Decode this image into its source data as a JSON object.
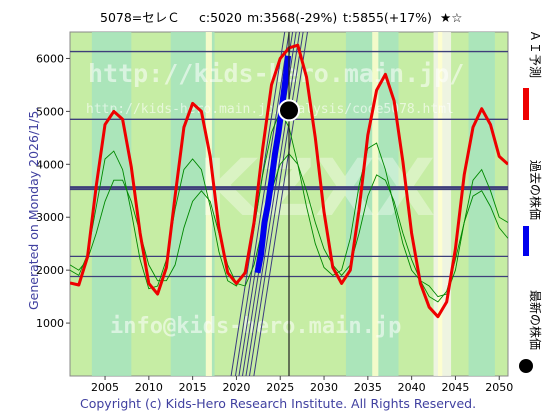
{
  "header": {
    "code_name": "5078=セレＣ",
    "current": "c:5020",
    "min": "m:3568(-29%)",
    "target": "t:5855(+17%)",
    "stars": "★☆"
  },
  "left_note": "Generated on Monday 2026/1/5.",
  "copyright": "Copyright (c) Kids-Hero Research Institute. All Rights Reserved.",
  "watermarks": {
    "url_large": "http://kids-hero.main.jp/",
    "url_small": "http://kids-hero.main.jp/analysis/code5078.html",
    "brand": "KZXX",
    "email": "info@kids-hero.main.jp"
  },
  "legend": [
    {
      "label": "ＡＩ予測",
      "color": "#ee0000"
    },
    {
      "label": "過去の株価",
      "color": "#0000ee"
    },
    {
      "label": "最新の株価",
      "color": "#000000"
    }
  ],
  "colors": {
    "plot_bg": "#c6eda4",
    "band_light": "#a6e3be",
    "band_pale": "#ffffcc",
    "band_white": "#f4f4ec",
    "grid_h": "#3e3e7a",
    "ai": "#ee0000",
    "past": "#0000ee",
    "thin": "#008800",
    "axis_text": "#000000"
  },
  "chart_data": {
    "type": "line",
    "xlim": [
      2001,
      2051
    ],
    "ylim": [
      0,
      6500
    ],
    "x_ticks": [
      2005,
      2010,
      2015,
      2020,
      2025,
      2030,
      2035,
      2040,
      2045,
      2050
    ],
    "y_ticks": [
      1000,
      2000,
      3000,
      4000,
      5000,
      6000
    ],
    "grid": "horizontal lines",
    "reference_lines": [
      6130,
      4850,
      3568,
      3530,
      2260,
      1880
    ],
    "latest_point": {
      "x": 2026.0,
      "y": 5020
    },
    "current_line_x": 2026.0,
    "series": [
      {
        "name": "ＡＩ予測",
        "x": [
          2001.0,
          2002.0,
          2003.0,
          2004.0,
          2005.0,
          2006.0,
          2007.0,
          2008.0,
          2009.0,
          2010.0,
          2011.0,
          2012.0,
          2013.0,
          2014.0,
          2015.0,
          2016.0,
          2017.0,
          2018.0,
          2019.0,
          2020.0,
          2021.0,
          2022.0,
          2023.0,
          2024.0,
          2025.0,
          2026.0,
          2027.0,
          2028.0,
          2029.0,
          2030.0,
          2031.0,
          2032.0,
          2033.0,
          2034.0,
          2035.0,
          2036.0,
          2037.0,
          2038.0,
          2039.0,
          2040.0,
          2041.0,
          2042.0,
          2043.0,
          2044.0,
          2045.0,
          2046.0,
          2047.0,
          2048.0,
          2049.0,
          2050.0,
          2051.0
        ],
        "y": [
          1760,
          1720,
          2250,
          3600,
          4750,
          5000,
          4850,
          3950,
          2700,
          1750,
          1550,
          2050,
          3400,
          4700,
          5150,
          5000,
          4150,
          2800,
          1950,
          1750,
          1950,
          2900,
          4300,
          5500,
          6000,
          6200,
          6250,
          5650,
          4500,
          3100,
          2050,
          1750,
          2000,
          3150,
          4550,
          5400,
          5700,
          5200,
          4050,
          2700,
          1750,
          1300,
          1120,
          1400,
          2400,
          3800,
          4700,
          5050,
          4750,
          4150,
          4000
        ]
      },
      {
        "name": "過去の株価",
        "x": [
          2022.4,
          2022.8,
          2023.2,
          2023.6,
          2024.0,
          2024.4,
          2024.8,
          2025.2,
          2025.6,
          2025.9
        ],
        "y": [
          1950,
          2300,
          2900,
          3250,
          3700,
          4200,
          4600,
          5100,
          5600,
          6050
        ]
      },
      {
        "x": [
          2001.0,
          2002.0,
          2003.0,
          2004.0,
          2005.0,
          2006.0,
          2007.0,
          2008.0,
          2009.0,
          2010.0,
          2011.0,
          2012.0,
          2013.0,
          2014.0,
          2015.0,
          2016.0,
          2017.0,
          2018.0,
          2019.0,
          2020.0,
          2021.0,
          2022.0,
          2023.0,
          2024.0,
          2025.0,
          2026.0,
          2027.0,
          2028.0,
          2029.0,
          2030.0,
          2031.0,
          2032.0,
          2033.0,
          2034.0,
          2035.0,
          2036.0,
          2037.0,
          2038.0,
          2039.0,
          2040.0,
          2041.0,
          2042.0,
          2043.0,
          2044.0,
          2045.0,
          2046.0,
          2047.0,
          2048.0,
          2049.0,
          2050.0,
          2051.0
        ],
        "y": [
          2000,
          1900,
          2300,
          3200,
          4100,
          4250,
          3900,
          3100,
          2200,
          1650,
          1700,
          2200,
          3150,
          3900,
          4100,
          3900,
          3200,
          2350,
          1800,
          1700,
          2000,
          2800,
          3800,
          4600,
          5000,
          4700,
          4000,
          3200,
          2500,
          2050,
          1900,
          2000,
          2600,
          3600,
          4300,
          4400,
          3900,
          3200,
          2500,
          2000,
          1800,
          1700,
          1500,
          1550,
          2000,
          2900,
          3700,
          3900,
          3500,
          3000,
          2900
        ]
      },
      {
        "x": [
          2001.0,
          2002.0,
          2003.0,
          2004.0,
          2005.0,
          2006.0,
          2007.0,
          2008.0,
          2009.0,
          2010.0,
          2011.0,
          2012.0,
          2013.0,
          2014.0,
          2015.0,
          2016.0,
          2017.0,
          2018.0,
          2019.0,
          2020.0,
          2021.0,
          2022.0,
          2023.0,
          2024.0,
          2025.0,
          2026.0,
          2027.0,
          2028.0,
          2029.0,
          2030.0,
          2031.0,
          2032.0,
          2033.0,
          2034.0,
          2035.0,
          2036.0,
          2037.0,
          2038.0,
          2039.0,
          2040.0,
          2041.0,
          2042.0,
          2043.0,
          2044.0,
          2045.0,
          2046.0,
          2047.0,
          2048.0,
          2049.0,
          2050.0,
          2051.0
        ],
        "y": [
          2100,
          2000,
          2200,
          2700,
          3300,
          3700,
          3700,
          3300,
          2700,
          2100,
          1800,
          1800,
          2100,
          2800,
          3300,
          3500,
          3300,
          2700,
          2100,
          1750,
          1700,
          2100,
          2800,
          3500,
          4000,
          4200,
          4000,
          3500,
          2900,
          2400,
          2100,
          1900,
          2100,
          2700,
          3400,
          3800,
          3700,
          3300,
          2700,
          2200,
          1800,
          1500,
          1400,
          1600,
          2200,
          2900,
          3400,
          3500,
          3200,
          2800,
          2600
        ]
      }
    ],
    "trend_band": {
      "x": [
        2020.5,
        2026.8
      ],
      "y_low": 0,
      "y_high": 6500
    }
  }
}
